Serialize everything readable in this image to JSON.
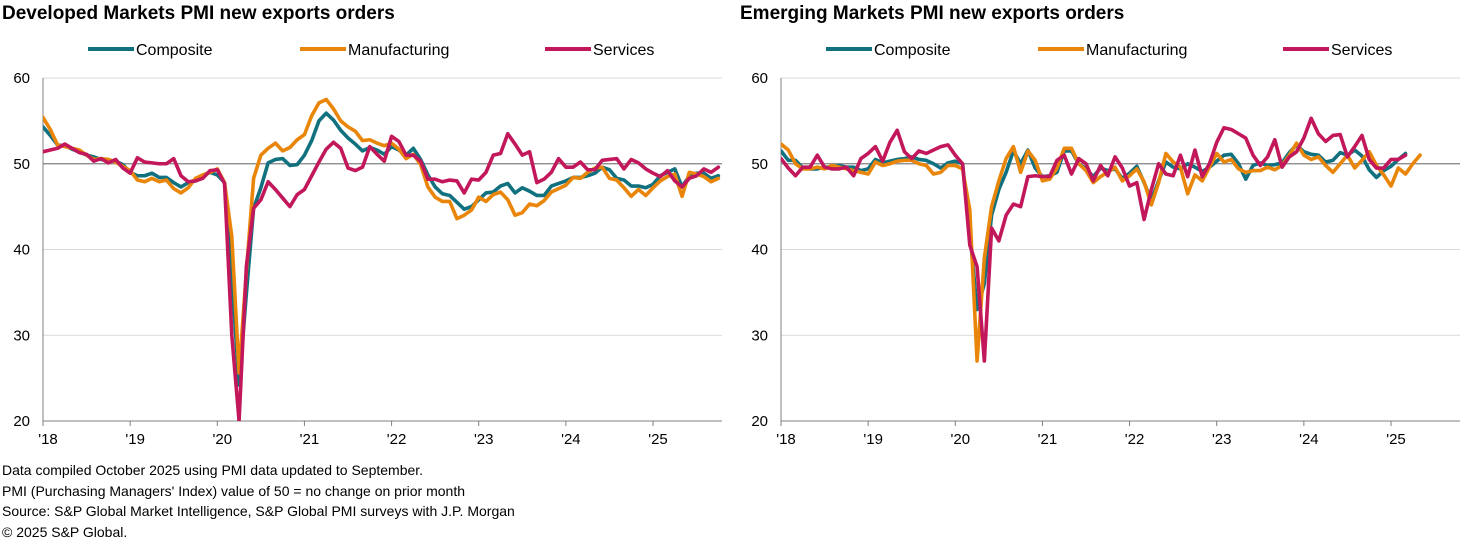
{
  "chart_data": [
    {
      "type": "line",
      "title": "Developed Markets PMI new exports orders",
      "xlabel": "",
      "ylabel": "",
      "x_start": "2018-01",
      "x_ticks": [
        "'18",
        "'19",
        "'20",
        "'21",
        "'22",
        "'23",
        "'24",
        "'25"
      ],
      "ylim": [
        20,
        60
      ],
      "y_ticks": [
        "20",
        "30",
        "40",
        "50",
        "60"
      ],
      "reference_line": 50,
      "legend_position": "top",
      "series": [
        {
          "name": "Composite",
          "color": "#12717f",
          "values": [
            54.3,
            53.3,
            52.2,
            52.1,
            51.7,
            51.4,
            51.0,
            50.8,
            50.5,
            50.4,
            50.3,
            49.9,
            49.0,
            48.6,
            48.6,
            48.9,
            48.4,
            48.4,
            47.8,
            47.3,
            47.8,
            48.0,
            48.6,
            49.0,
            48.7,
            47.8,
            36.8,
            24.2,
            34.8,
            44.8,
            47.2,
            50.1,
            50.5,
            50.6,
            49.8,
            49.9,
            51.0,
            52.7,
            55.0,
            55.9,
            55.1,
            53.9,
            53.0,
            52.3,
            51.5,
            51.9,
            51.6,
            51.1,
            52.0,
            51.6,
            51.0,
            51.8,
            50.5,
            48.7,
            47.3,
            46.5,
            46.3,
            45.5,
            44.7,
            45.0,
            45.8,
            46.6,
            46.7,
            47.4,
            47.7,
            46.6,
            47.2,
            46.8,
            46.3,
            46.3,
            47.4,
            47.7,
            48.0,
            48.4,
            48.4,
            48.6,
            48.9,
            49.6,
            49.3,
            48.3,
            48.1,
            47.4,
            47.4,
            47.2,
            47.6,
            48.6,
            49.0,
            49.4,
            47.3,
            48.6,
            48.9,
            48.9,
            48.3,
            48.6
          ]
        },
        {
          "name": "Manufacturing",
          "color": "#e9860a",
          "values": [
            55.4,
            54.0,
            52.2,
            52.0,
            51.8,
            51.6,
            51.0,
            50.5,
            50.6,
            50.5,
            50.2,
            49.7,
            49.2,
            48.1,
            47.9,
            48.3,
            47.9,
            48.1,
            47.1,
            46.6,
            47.2,
            48.3,
            48.7,
            49.0,
            49.4,
            47.8,
            41.5,
            25.6,
            37.4,
            48.3,
            51.0,
            51.8,
            52.4,
            51.5,
            51.9,
            52.8,
            53.4,
            55.6,
            57.1,
            57.5,
            56.4,
            55.0,
            54.3,
            53.8,
            52.7,
            52.8,
            52.4,
            52.1,
            52.4,
            51.7,
            50.6,
            51.1,
            49.9,
            47.3,
            46.1,
            45.6,
            45.6,
            43.6,
            44.0,
            44.6,
            46.1,
            45.6,
            46.4,
            46.7,
            45.8,
            44.0,
            44.3,
            45.3,
            45.1,
            45.7,
            46.7,
            47.1,
            47.5,
            48.4,
            48.3,
            49.0,
            49.5,
            49.6,
            48.3,
            48.1,
            47.2,
            46.2,
            47.0,
            46.3,
            47.2,
            48.0,
            48.5,
            48.8,
            46.2,
            49.0,
            48.8,
            48.5,
            47.9,
            48.3
          ]
        },
        {
          "name": "Services",
          "color": "#c2185b",
          "values": [
            51.4,
            51.6,
            51.8,
            52.3,
            51.8,
            51.3,
            51.1,
            50.3,
            50.6,
            50.1,
            50.5,
            49.5,
            48.9,
            50.7,
            50.2,
            50.1,
            50.0,
            50.0,
            50.6,
            48.6,
            47.9,
            48.0,
            48.3,
            49.2,
            49.3,
            47.7,
            30.0,
            20.0,
            38.0,
            44.8,
            45.8,
            47.9,
            47.0,
            46.0,
            45.0,
            46.4,
            47.0,
            48.6,
            50.2,
            51.7,
            52.5,
            51.8,
            49.5,
            49.2,
            49.6,
            52.0,
            51.1,
            50.3,
            53.2,
            52.6,
            51.0,
            51.0,
            50.3,
            48.2,
            48.2,
            47.9,
            48.1,
            48.0,
            46.6,
            48.2,
            48.1,
            49.0,
            51.0,
            51.2,
            53.5,
            52.3,
            51.0,
            51.4,
            47.8,
            48.2,
            49.0,
            50.6,
            49.6,
            49.6,
            50.2,
            49.3,
            49.3,
            50.4,
            50.5,
            50.6,
            49.4,
            50.5,
            50.1,
            49.4,
            48.9,
            48.5,
            49.2,
            48.0,
            47.3,
            48.3,
            48.6,
            49.4,
            49.0,
            49.6
          ]
        }
      ]
    },
    {
      "type": "line",
      "title": "Emerging Markets PMI new exports orders",
      "xlabel": "",
      "ylabel": "",
      "x_start": "2018-01",
      "x_ticks": [
        "'18",
        "'19",
        "'20",
        "'21",
        "'22",
        "'23",
        "'24",
        "'25"
      ],
      "ylim": [
        20,
        60
      ],
      "y_ticks": [
        "20",
        "30",
        "40",
        "50",
        "60"
      ],
      "reference_line": 50,
      "legend_position": "top",
      "series": [
        {
          "name": "Composite",
          "color": "#12717f",
          "values": [
            51.5,
            50.4,
            50.4,
            49.5,
            49.4,
            49.4,
            49.6,
            49.6,
            49.8,
            49.6,
            49.6,
            49.2,
            49.4,
            50.5,
            50.1,
            50.3,
            50.5,
            50.6,
            50.8,
            50.5,
            50.4,
            50.0,
            49.5,
            50.1,
            50.3,
            50.0,
            42.0,
            33.0,
            36.0,
            44.0,
            47.0,
            49.0,
            51.5,
            50.0,
            51.6,
            49.5,
            48.5,
            48.6,
            49.0,
            51.5,
            51.5,
            50.0,
            49.4,
            48.5,
            49.5,
            49.2,
            49.4,
            48.3,
            48.9,
            49.7,
            47.8,
            45.7,
            48.0,
            50.2,
            49.6,
            49.4,
            50.0,
            49.6,
            49.1,
            49.6,
            50.3,
            51.0,
            51.1,
            50.0,
            48.2,
            49.8,
            50.1,
            49.8,
            49.9,
            50.1,
            51.3,
            52.2,
            51.4,
            51.1,
            51.0,
            50.2,
            50.4,
            51.3,
            51.0,
            51.6,
            50.9,
            49.3,
            48.4,
            49.2,
            49.7,
            50.5,
            51.2
          ]
        },
        {
          "name": "Manufacturing",
          "color": "#e9860a",
          "values": [
            52.3,
            51.6,
            50.0,
            49.4,
            49.4,
            49.6,
            49.4,
            49.8,
            49.6,
            49.4,
            49.2,
            49.0,
            48.8,
            50.2,
            49.8,
            50.0,
            50.3,
            50.4,
            50.4,
            50.0,
            49.8,
            48.8,
            49.0,
            49.8,
            49.8,
            49.4,
            44.6,
            27.0,
            39.0,
            45.0,
            48.0,
            50.6,
            52.0,
            49.0,
            51.5,
            50.4,
            48.0,
            48.2,
            49.5,
            51.8,
            51.8,
            50.0,
            49.2,
            47.8,
            48.5,
            49.0,
            49.6,
            48.0,
            48.6,
            49.4,
            47.9,
            45.2,
            47.8,
            51.2,
            50.2,
            49.6,
            46.5,
            48.7,
            48.0,
            49.6,
            51.2,
            50.2,
            50.5,
            49.4,
            49.0,
            49.2,
            49.2,
            49.6,
            49.3,
            49.8,
            51.0,
            52.4,
            51.0,
            50.5,
            50.8,
            49.8,
            49.0,
            50.0,
            51.0,
            49.5,
            50.4,
            51.4,
            49.8,
            48.7,
            47.4,
            49.5,
            48.8,
            50.0,
            51.0
          ]
        },
        {
          "name": "Services",
          "color": "#c2185b",
          "values": [
            50.6,
            49.5,
            48.6,
            49.6,
            49.6,
            51.0,
            49.6,
            49.4,
            49.4,
            49.6,
            48.6,
            50.6,
            51.2,
            52.0,
            50.3,
            52.5,
            53.9,
            51.4,
            50.6,
            51.5,
            51.2,
            51.6,
            52.0,
            52.2,
            51.0,
            50.0,
            40.5,
            38.0,
            27.0,
            42.5,
            41.0,
            44.0,
            45.3,
            45.0,
            48.5,
            48.6,
            48.5,
            48.5,
            50.4,
            51.0,
            48.8,
            50.6,
            50.0,
            48.0,
            49.8,
            48.6,
            50.8,
            49.5,
            47.4,
            47.8,
            43.5,
            47.0,
            50.0,
            48.8,
            48.6,
            51.0,
            48.5,
            51.6,
            48.5,
            50.0,
            52.5,
            54.2,
            54.0,
            53.5,
            53.0,
            51.0,
            49.8,
            50.8,
            52.8,
            49.6,
            50.8,
            51.4,
            53.0,
            55.3,
            53.5,
            52.6,
            53.3,
            53.4,
            50.8,
            52.0,
            53.3,
            50.5,
            49.5,
            49.5,
            50.5,
            50.5,
            51.0
          ]
        }
      ]
    }
  ],
  "notes": {
    "line1": "Data compiled October 2025 using PMI data updated to September.",
    "line2": "PMI (Purchasing Managers' Index) value of 50 = no change on prior month",
    "line3": "Source: S&P Global Market Intelligence, S&P Global PMI surveys with J.P. Morgan",
    "line4": "© 2025 S&P Global."
  }
}
